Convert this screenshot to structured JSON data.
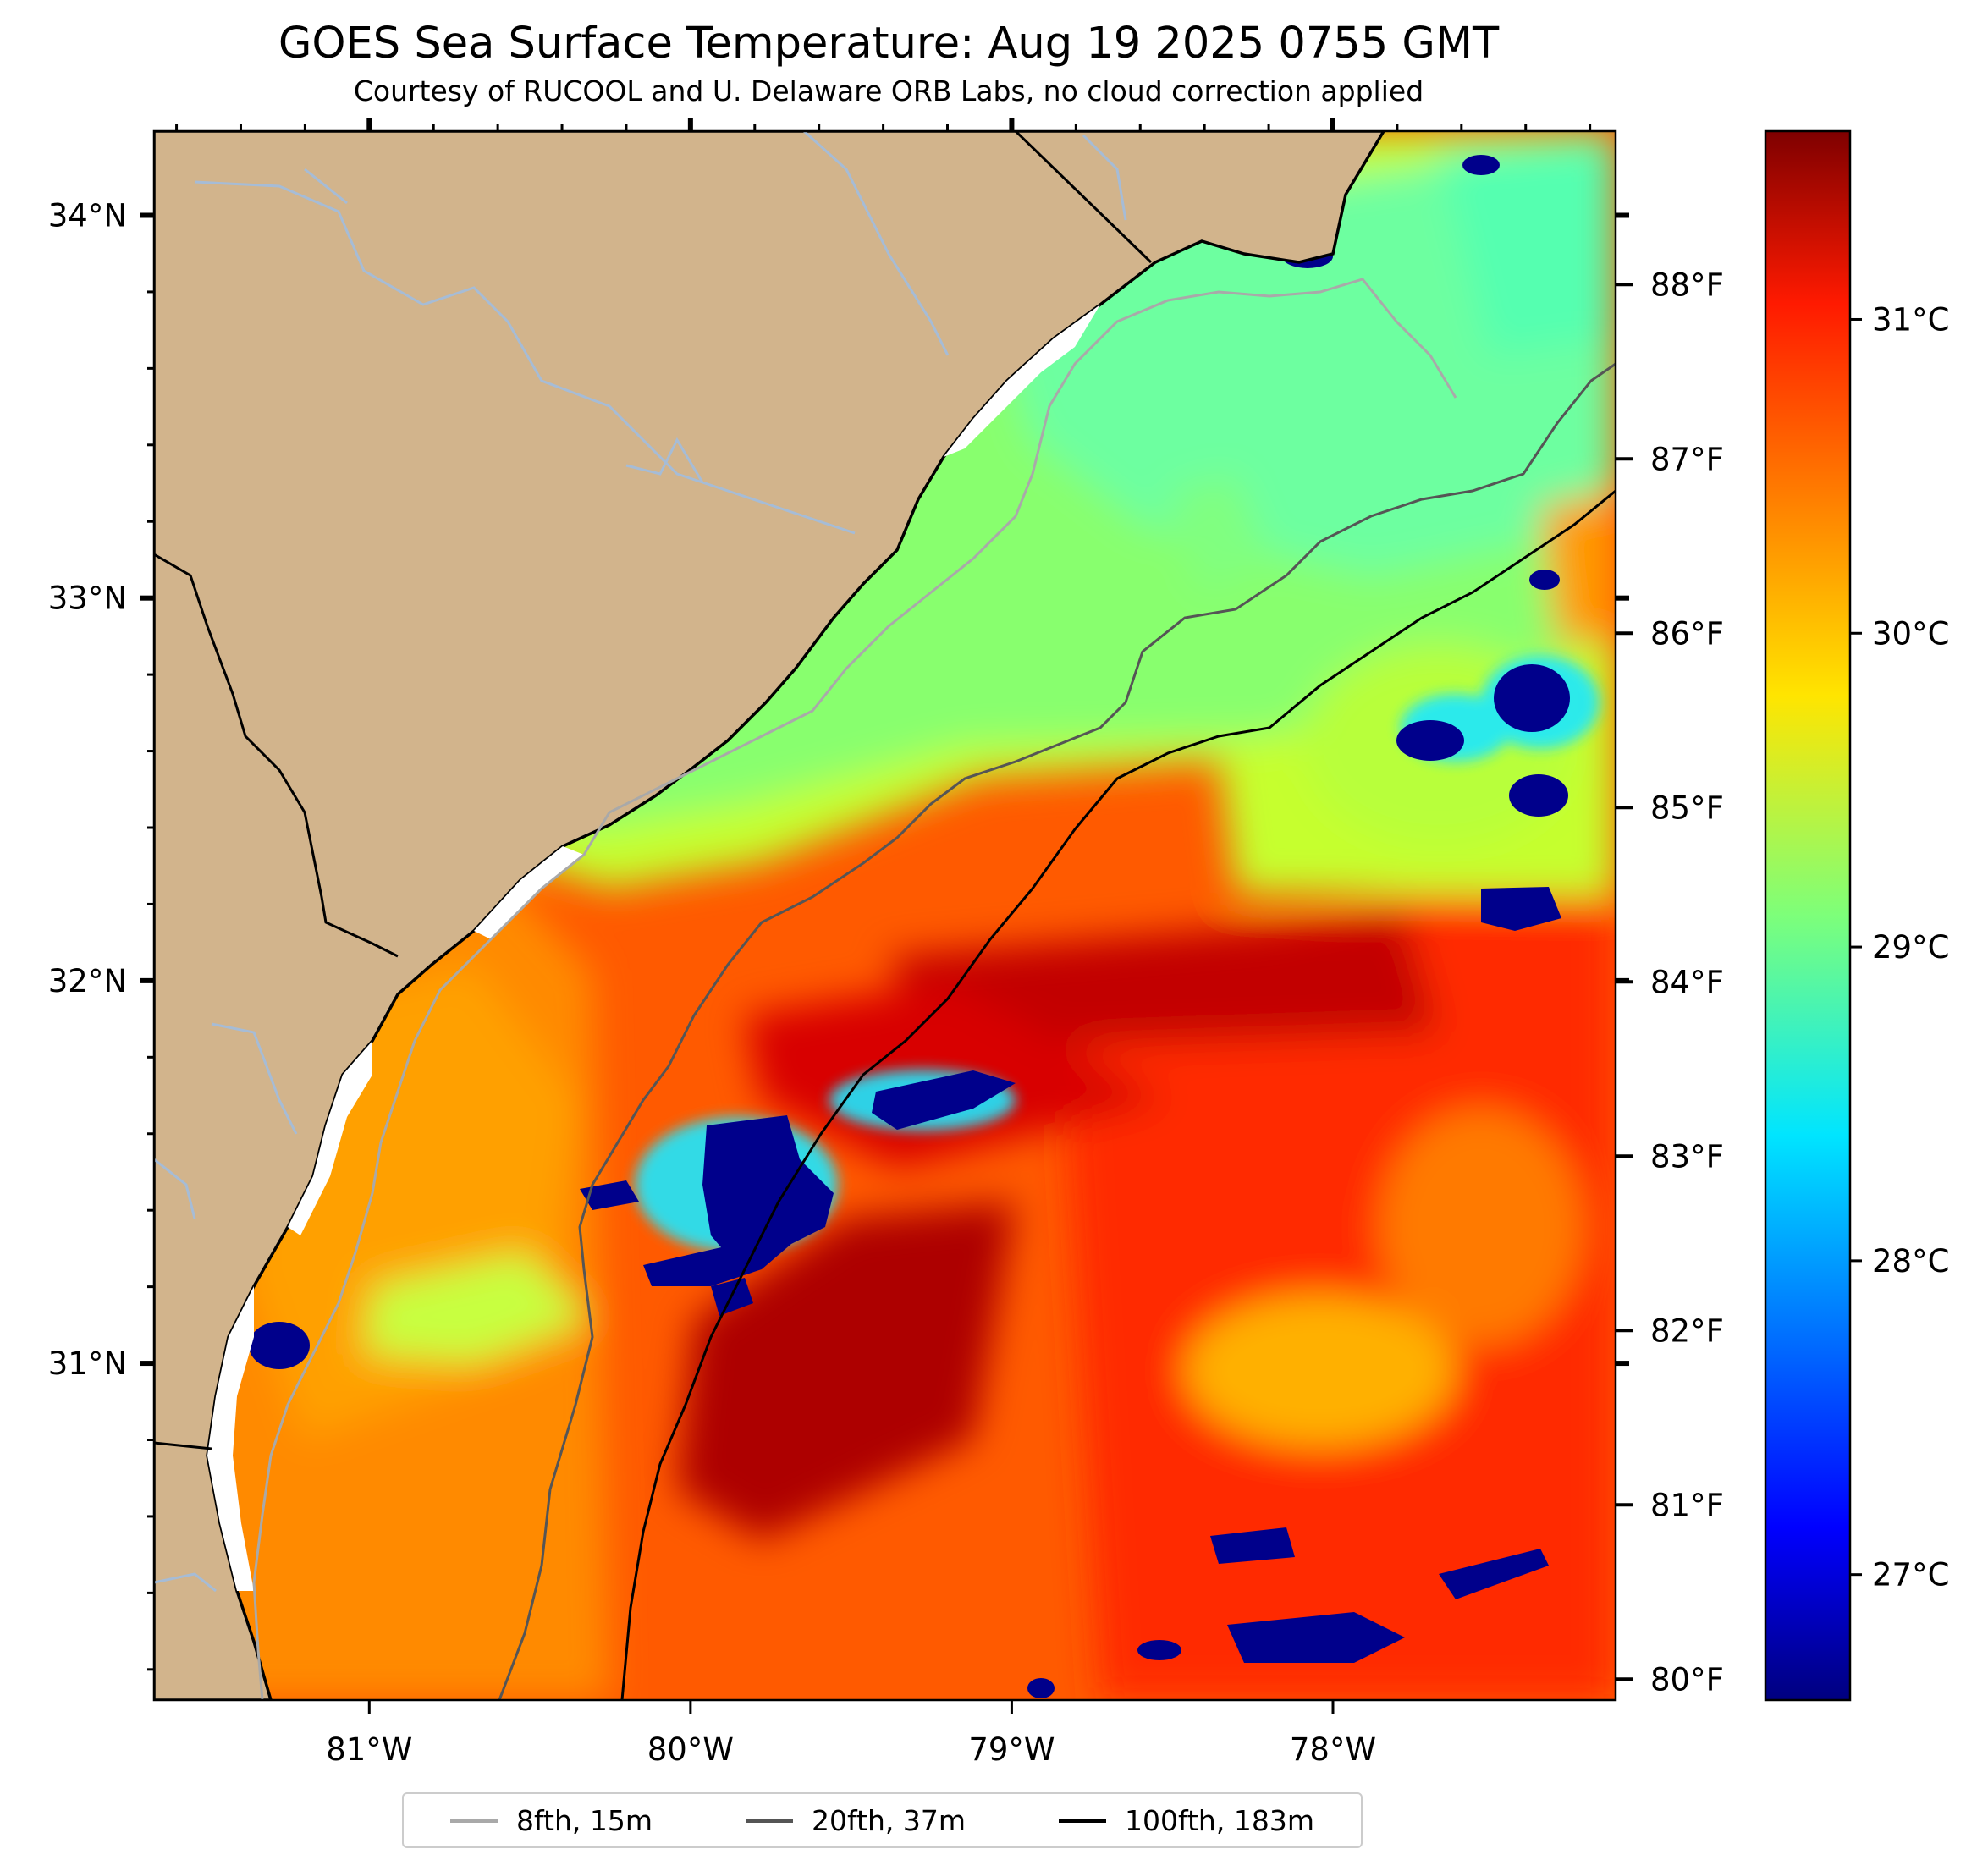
{
  "title": "GOES Sea Surface Temperature: Aug 19 2025 0755 GMT",
  "subtitle": "Courtesy of RUCOOL and U. Delaware ORB Labs, no cloud correction applied",
  "map": {
    "lon_range": [
      -81.67,
      -77.12
    ],
    "lat_range": [
      30.12,
      34.22
    ],
    "lon_ticks": [
      {
        "value": -81,
        "label": "81°W"
      },
      {
        "value": -80,
        "label": "80°W"
      },
      {
        "value": -79,
        "label": "79°W"
      },
      {
        "value": -78,
        "label": "78°W"
      }
    ],
    "lat_ticks": [
      {
        "value": 31,
        "label": "31°N"
      },
      {
        "value": 32,
        "label": "32°N"
      },
      {
        "value": 33,
        "label": "33°N"
      },
      {
        "value": 34,
        "label": "34°N"
      }
    ],
    "land_color": "#d2b48c",
    "river_color": "#a6bcd6"
  },
  "colorbar": {
    "colormap": "jet",
    "celsius_range": [
      26.6,
      31.6
    ],
    "celsius_ticks": [
      {
        "value": 27,
        "label": "27°C"
      },
      {
        "value": 28,
        "label": "28°C"
      },
      {
        "value": 29,
        "label": "29°C"
      },
      {
        "value": 30,
        "label": "30°C"
      },
      {
        "value": 31,
        "label": "31°C"
      }
    ],
    "fahrenheit_ticks": [
      {
        "value": 80,
        "label": "80°F"
      },
      {
        "value": 81,
        "label": "81°F"
      },
      {
        "value": 82,
        "label": "82°F"
      },
      {
        "value": 83,
        "label": "83°F"
      },
      {
        "value": 84,
        "label": "84°F"
      },
      {
        "value": 85,
        "label": "85°F"
      },
      {
        "value": 86,
        "label": "86°F"
      },
      {
        "value": 87,
        "label": "87°F"
      },
      {
        "value": 88,
        "label": "88°F"
      }
    ]
  },
  "legend": [
    {
      "label": "8fth, 15m",
      "color": "#a9a9a9"
    },
    {
      "label": "20fth, 37m",
      "color": "#555555"
    },
    {
      "label": "100fth, 183m",
      "color": "#000000"
    }
  ],
  "colors": {
    "warm_core": "#8b0000",
    "cool_shelf": "#7dfa7d",
    "cloud_mask": "#00008b"
  }
}
